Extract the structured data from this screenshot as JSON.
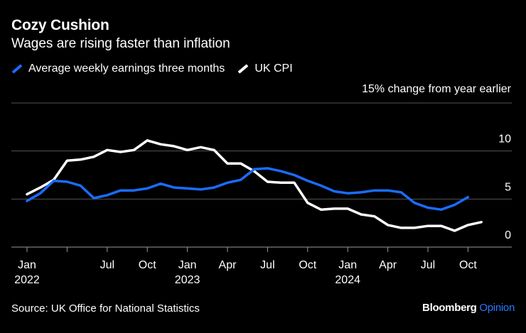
{
  "colors": {
    "earnings": "#1a6cff",
    "cpi": "#ffffff",
    "grid": "#555555",
    "background": "#000000",
    "brand_accent": "#2979ff"
  },
  "chart_data": {
    "type": "line",
    "title": "Cozy Cushion",
    "subtitle": "Wages are rising faster than inflation",
    "ylabel": "% change from year earlier",
    "ylim": [
      0,
      15
    ],
    "yticks": [
      0,
      5,
      10,
      15
    ],
    "ytick_labels": [
      "0",
      "5",
      "10",
      "15"
    ],
    "xlim": [
      "2022-01",
      "2025-01"
    ],
    "xticks": [
      {
        "date": "2022-01",
        "month": "Jan",
        "year": "2022"
      },
      {
        "date": "2022-04",
        "month": "",
        "year": ""
      },
      {
        "date": "2022-07",
        "month": "Jul",
        "year": ""
      },
      {
        "date": "2022-10",
        "month": "Oct",
        "year": ""
      },
      {
        "date": "2023-01",
        "month": "Jan",
        "year": "2023"
      },
      {
        "date": "2023-04",
        "month": "Apr",
        "year": ""
      },
      {
        "date": "2023-07",
        "month": "Jul",
        "year": ""
      },
      {
        "date": "2023-10",
        "month": "Oct",
        "year": ""
      },
      {
        "date": "2024-01",
        "month": "Jan",
        "year": "2024"
      },
      {
        "date": "2024-04",
        "month": "Apr",
        "year": ""
      },
      {
        "date": "2024-07",
        "month": "Jul",
        "year": ""
      },
      {
        "date": "2024-10",
        "month": "Oct",
        "year": ""
      }
    ],
    "grid": true,
    "legend_position": "top-left",
    "series": [
      {
        "name": "Average weekly earnings three months",
        "color": "#1a6cff",
        "x": [
          "2022-01",
          "2022-02",
          "2022-03",
          "2022-04",
          "2022-05",
          "2022-06",
          "2022-07",
          "2022-08",
          "2022-09",
          "2022-10",
          "2022-11",
          "2022-12",
          "2023-01",
          "2023-02",
          "2023-03",
          "2023-04",
          "2023-05",
          "2023-06",
          "2023-07",
          "2023-08",
          "2023-09",
          "2023-10",
          "2023-11",
          "2023-12",
          "2024-01",
          "2024-02",
          "2024-03",
          "2024-04",
          "2024-05",
          "2024-06",
          "2024-07",
          "2024-08",
          "2024-09",
          "2024-10",
          "2024-11"
        ],
        "values": [
          4.8,
          5.6,
          6.9,
          6.8,
          6.4,
          5.1,
          5.4,
          5.9,
          5.9,
          6.1,
          6.6,
          6.2,
          6.1,
          6.0,
          6.2,
          6.7,
          7.0,
          8.1,
          8.2,
          7.9,
          7.5,
          6.9,
          6.4,
          5.8,
          5.6,
          5.7,
          5.9,
          5.9,
          5.7,
          4.6,
          4.1,
          3.9,
          4.4,
          5.2,
          null
        ]
      },
      {
        "name": "UK CPI",
        "color": "#ffffff",
        "x": [
          "2022-01",
          "2022-02",
          "2022-03",
          "2022-04",
          "2022-05",
          "2022-06",
          "2022-07",
          "2022-08",
          "2022-09",
          "2022-10",
          "2022-11",
          "2022-12",
          "2023-01",
          "2023-02",
          "2023-03",
          "2023-04",
          "2023-05",
          "2023-06",
          "2023-07",
          "2023-08",
          "2023-09",
          "2023-10",
          "2023-11",
          "2023-12",
          "2024-01",
          "2024-02",
          "2024-03",
          "2024-04",
          "2024-05",
          "2024-06",
          "2024-07",
          "2024-08",
          "2024-09",
          "2024-10",
          "2024-11"
        ],
        "values": [
          5.5,
          6.2,
          7.0,
          9.0,
          9.1,
          9.4,
          10.1,
          9.9,
          10.1,
          11.1,
          10.7,
          10.5,
          10.1,
          10.4,
          10.1,
          8.7,
          8.7,
          7.9,
          6.8,
          6.7,
          6.7,
          4.6,
          3.9,
          4.0,
          4.0,
          3.4,
          3.2,
          2.3,
          2.0,
          2.0,
          2.2,
          2.2,
          1.7,
          2.3,
          2.6
        ]
      }
    ]
  },
  "source": "Source: UK Office for National Statistics",
  "brand": {
    "name": "Bloomberg",
    "section": "Opinion"
  }
}
